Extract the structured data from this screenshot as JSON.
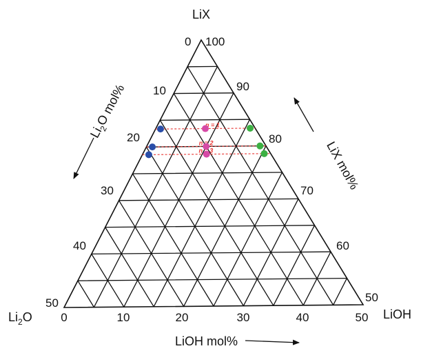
{
  "diagram": {
    "corners": {
      "top": "LiX",
      "left": {
        "base": "Li",
        "sub": "2",
        "rest": "O"
      },
      "right": "LiOH"
    },
    "axis_titles": {
      "left": {
        "base": "Li",
        "sub": "2",
        "rest": "O mol%"
      },
      "right": "LiX mol%",
      "bottom": "LiOH mol%"
    },
    "ticks": {
      "left": [
        "0",
        "10",
        "20",
        "30",
        "40",
        "50"
      ],
      "right": [
        "100",
        "90",
        "80",
        "70",
        "60",
        "50"
      ],
      "bottom": [
        "0",
        "10",
        "20",
        "30",
        "40",
        "50"
      ]
    },
    "subdivisions": 10,
    "colors": {
      "grid": "#111111",
      "guide": "#e8322f",
      "label": "#e8322f",
      "blue": "#2a4ea8",
      "magenta": "#d64aa6",
      "green": "#3cb043"
    },
    "compositions": [
      {
        "label": "n = 1",
        "label_u": 0.5,
        "blue_u": 0.05,
        "magenta_u": 0.5,
        "green_u": 0.95,
        "lix_fraction": 0.667
      },
      {
        "label": "n = 2",
        "label_u": 0.44,
        "blue_u": 0.05,
        "magenta_u": 0.5,
        "green_u": 0.95,
        "lix_fraction": 0.6
      },
      {
        "label": "n = 3",
        "label_u": 0.44,
        "blue_u": 0.05,
        "magenta_u": 0.5,
        "green_u": 0.95,
        "lix_fraction": 0.571
      }
    ]
  }
}
